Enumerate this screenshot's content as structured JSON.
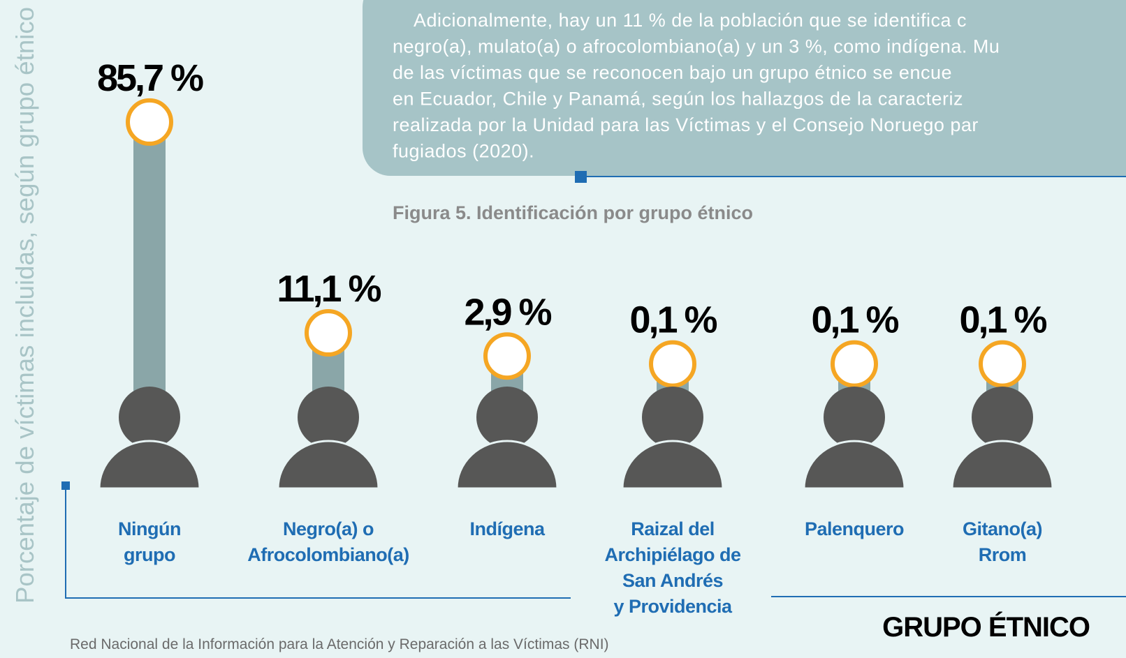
{
  "chart_data": {
    "type": "bar",
    "title": "Figura 5. Identificación por grupo étnico",
    "intro": [
      "Adicionalmente, hay un 11 % de la población que se identifica c",
      "negro(a), mulato(a) o afrocolombiano(a) y un 3 %, como indígena. Mu",
      "de las víctimas que se reconocen bajo un grupo étnico se encue",
      "en Ecuador, Chile y Panamá, según los hallazgos de la caracteriz",
      "realizada por la Unidad para las Víctimas y el Consejo Noruego par",
      "fugiados (2020)."
    ],
    "y_label": "Porcentaje de víctimas incluidas, según grupo étnico",
    "x_label": "GRUPO ÉTNICO",
    "source": "Red Nacional de la Información para la Atención y Reparación a las Víctimas (RNI)",
    "categories": [
      [
        "Ningún",
        "grupo"
      ],
      [
        "Negro(a) o",
        "Afrocolombiano(a)"
      ],
      [
        "Indígena"
      ],
      [
        "Raizal del",
        "Archipiélago de",
        "San Andrés",
        "y Providencia"
      ],
      [
        "Palenquero"
      ],
      [
        "Gitano(a)",
        "Rrom"
      ]
    ],
    "values": [
      85.7,
      11.1,
      2.9,
      0.1,
      0.1,
      0.1
    ],
    "value_labels": [
      "85,7 %",
      "11,1 %",
      "2,9 %",
      "0,1 %",
      "0,1 %",
      "0,1 %"
    ],
    "ylim": [
      0,
      100
    ],
    "color": "#8aa6a8"
  }
}
